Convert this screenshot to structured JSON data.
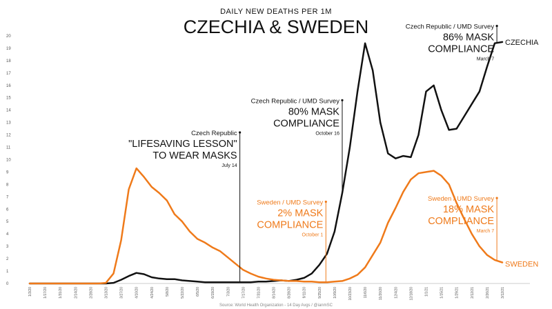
{
  "chart_data": {
    "type": "line",
    "title": "CZECHIA & SWEDEN",
    "subtitle": "DAILY NEW DEATHS PER 1M",
    "source": "Source: World Health Organization - 14 Day Avgs / @ianmSC",
    "ylim": [
      0,
      21
    ],
    "yticks": [
      0,
      1,
      2,
      3,
      4,
      5,
      6,
      7,
      8,
      9,
      10,
      11,
      12,
      13,
      14,
      15,
      16,
      17,
      18,
      19,
      20
    ],
    "grid": false,
    "x_dates": [
      "1/3/20",
      "1/10/20",
      "1/17/20",
      "1/24/20",
      "1/31/20",
      "2/7/20",
      "2/14/20",
      "2/21/20",
      "2/28/20",
      "3/6/20",
      "3/13/20",
      "3/20/20",
      "3/27/20",
      "4/3/20",
      "4/10/20",
      "4/17/20",
      "4/24/20",
      "5/1/20",
      "5/8/20",
      "5/15/20",
      "5/22/20",
      "5/29/20",
      "6/5/20",
      "6/12/20",
      "6/19/20",
      "6/26/20",
      "7/3/20",
      "7/10/20",
      "7/17/20",
      "7/24/20",
      "7/31/20",
      "8/7/20",
      "8/14/20",
      "8/21/20",
      "8/28/20",
      "9/4/20",
      "9/11/20",
      "9/18/20",
      "9/25/20",
      "10/2/20",
      "10/9/20",
      "10/16/20",
      "10/23/20",
      "10/30/20",
      "11/6/20",
      "11/13/20",
      "11/20/20",
      "11/27/20",
      "12/4/20",
      "12/11/20",
      "12/18/20",
      "12/25/20",
      "1/1/21",
      "1/8/21",
      "1/15/21",
      "1/22/21",
      "1/29/21",
      "2/5/21",
      "2/12/21",
      "2/19/21",
      "2/26/21",
      "3/5/21",
      "3/12/21"
    ],
    "xtick_labels": [
      "1/3/20",
      "1/17/20",
      "1/31/20",
      "2/14/20",
      "2/28/20",
      "3/13/20",
      "3/27/20",
      "4/10/20",
      "4/24/20",
      "5/8/20",
      "5/22/20",
      "6/5/20",
      "6/19/20",
      "7/3/20",
      "7/17/20",
      "7/31/20",
      "8/14/20",
      "8/28/20",
      "9/11/20",
      "9/25/20",
      "10/9/20",
      "10/23/20",
      "11/6/20",
      "11/20/20",
      "12/4/20",
      "12/18/20",
      "1/1/21",
      "1/15/21",
      "1/29/21",
      "2/12/21",
      "2/26/21",
      "3/12/21"
    ],
    "series": [
      {
        "name": "CZECHIA",
        "color": "#111111",
        "values": [
          0,
          0,
          0,
          0,
          0,
          0,
          0,
          0,
          0,
          0,
          0,
          0.05,
          0.3,
          0.6,
          0.85,
          0.75,
          0.5,
          0.4,
          0.35,
          0.35,
          0.25,
          0.2,
          0.15,
          0.1,
          0.1,
          0.1,
          0.1,
          0.1,
          0.1,
          0.1,
          0.15,
          0.15,
          0.2,
          0.25,
          0.2,
          0.3,
          0.45,
          0.8,
          1.5,
          2.4,
          4.2,
          7.3,
          11.0,
          15.5,
          19.4,
          17.2,
          13.0,
          10.5,
          10.1,
          10.3,
          10.2,
          12.0,
          15.5,
          16.0,
          14.0,
          12.4,
          12.5,
          13.5,
          14.5,
          15.5,
          17.5,
          19.4,
          19.5
        ]
      },
      {
        "name": "SWEDEN",
        "color": "#ef7a1a",
        "values": [
          0,
          0,
          0,
          0,
          0,
          0,
          0,
          0,
          0,
          0,
          0.05,
          0.8,
          3.5,
          7.6,
          9.3,
          8.6,
          7.8,
          7.3,
          6.7,
          5.6,
          5.0,
          4.2,
          3.6,
          3.3,
          2.9,
          2.6,
          2.1,
          1.6,
          1.1,
          0.8,
          0.55,
          0.4,
          0.3,
          0.25,
          0.2,
          0.2,
          0.15,
          0.15,
          0.1,
          0.1,
          0.15,
          0.2,
          0.4,
          0.7,
          1.3,
          2.3,
          3.3,
          4.9,
          6.1,
          7.4,
          8.4,
          8.9,
          9.0,
          9.1,
          8.7,
          8.0,
          6.5,
          5.2,
          4.0,
          3.0,
          2.3,
          1.9,
          1.7
        ]
      }
    ],
    "end_labels": {
      "czechia": "CZECHIA",
      "sweden": "SWEDEN"
    },
    "annotations": [
      {
        "date": "7/14/20",
        "y_top": 12.2,
        "color": "#111111",
        "lines": [
          "Czech Republic",
          "\"LIFESAVING LESSON\"",
          "TO WEAR MASKS"
        ],
        "date_label": "July 14"
      },
      {
        "date": "10/16/20",
        "y_top": 14.8,
        "color": "#111111",
        "lines": [
          "Czech Republic / UMD Survey",
          "80% MASK",
          "COMPLIANCE"
        ],
        "date_label": "October 16"
      },
      {
        "date": "10/1/20",
        "y_top": 6.6,
        "color": "#ef7a1a",
        "lines": [
          "Sweden / UMD Survey",
          "2% MASK",
          "COMPLIANCE"
        ],
        "date_label": "October 1"
      },
      {
        "date": "3/7/21",
        "y_top": 20.8,
        "color": "#111111",
        "lines": [
          "Czech Republic / UMD Survey",
          "86% MASK",
          "COMPLIANCE"
        ],
        "date_label": "March 7"
      },
      {
        "date": "3/7/21",
        "y_top": 6.9,
        "color": "#ef7a1a",
        "lines": [
          "Sweden / UMD Survey",
          "18% MASK",
          "COMPLIANCE"
        ],
        "date_label": "March 7"
      }
    ]
  }
}
